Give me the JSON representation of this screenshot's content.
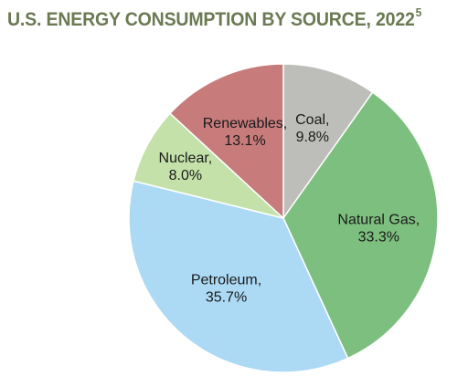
{
  "title": {
    "text": "U.S. ENERGY CONSUMPTION BY SOURCE, 2022",
    "footnote": "5"
  },
  "chart_data": {
    "type": "pie",
    "slices": [
      {
        "name": "Coal",
        "value": 9.8,
        "label": "Coal,",
        "value_label": "9.8%",
        "color": "#bdbdb9"
      },
      {
        "name": "Natural Gas",
        "value": 33.3,
        "label": "Natural Gas,",
        "value_label": "33.3%",
        "color": "#7dbf7e"
      },
      {
        "name": "Petroleum",
        "value": 35.7,
        "label": "Petroleum,",
        "value_label": "35.7%",
        "color": "#acd9f4"
      },
      {
        "name": "Nuclear",
        "value": 8.0,
        "label": "Nuclear,",
        "value_label": "8.0%",
        "color": "#c3e1a9"
      },
      {
        "name": "Renewables",
        "value": 13.1,
        "label": "Renewables,",
        "value_label": "13.1%",
        "color": "#c77b7b"
      }
    ],
    "start": "12 o'clock",
    "direction": "clockwise"
  }
}
